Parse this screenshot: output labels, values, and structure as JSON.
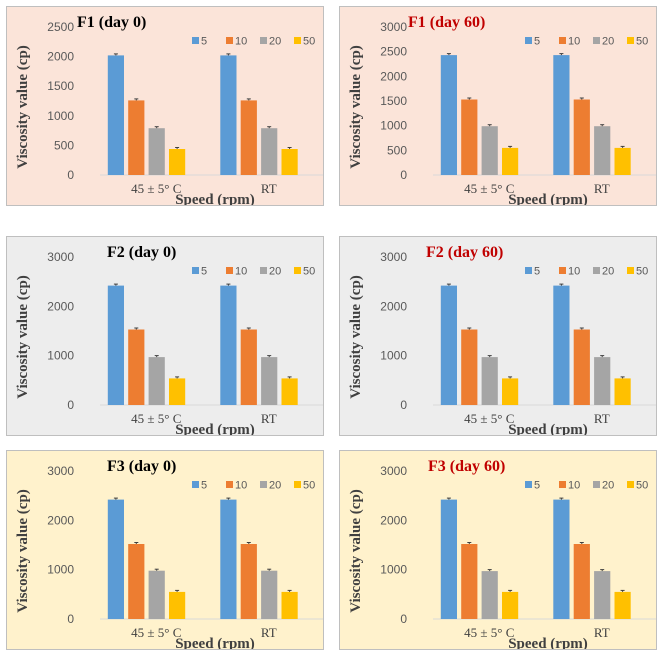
{
  "chart_data": [
    {
      "type": "bar",
      "title": "F1 (day 0)",
      "title_color": "#000000",
      "background": "#fbe4d9",
      "categories": [
        "45 ± 5° C",
        "RT"
      ],
      "series": [
        {
          "name": "5",
          "values": [
            2020,
            2020
          ]
        },
        {
          "name": "10",
          "values": [
            1260,
            1260
          ]
        },
        {
          "name": "20",
          "values": [
            790,
            790
          ]
        },
        {
          "name": "50",
          "values": [
            440,
            440
          ]
        }
      ],
      "series_colors": [
        "#5b9bd5",
        "#ed7d31",
        "#a5a5a5",
        "#ffc000"
      ],
      "xlabel": "Speed (rpm)",
      "ylabel": "Viscosity value (cp)",
      "ylim": [
        0,
        2500
      ],
      "yticks": [
        0,
        500,
        1000,
        1500,
        2000,
        2500
      ],
      "legend_position": "top-right",
      "grid": false
    },
    {
      "type": "bar",
      "title": "F1 (day 60)",
      "title_color": "#c00000",
      "background": "#fbe4d9",
      "categories": [
        "45 ± 5° C",
        "RT"
      ],
      "series": [
        {
          "name": "5",
          "values": [
            2430,
            2430
          ]
        },
        {
          "name": "10",
          "values": [
            1530,
            1530
          ]
        },
        {
          "name": "20",
          "values": [
            990,
            990
          ]
        },
        {
          "name": "50",
          "values": [
            550,
            550
          ]
        }
      ],
      "series_colors": [
        "#5b9bd5",
        "#ed7d31",
        "#a5a5a5",
        "#ffc000"
      ],
      "xlabel": "Speed (rpm)",
      "ylabel": "Viscosity value (cp)",
      "ylim": [
        0,
        3000
      ],
      "yticks": [
        0,
        500,
        1000,
        1500,
        2000,
        2500,
        3000
      ],
      "legend_position": "top-right",
      "grid": false
    },
    {
      "type": "bar",
      "title": "F2 (day 0)",
      "title_color": "#000000",
      "background": "#ededed",
      "categories": [
        "45 ± 5° C",
        "RT"
      ],
      "series": [
        {
          "name": "5",
          "values": [
            2420,
            2420
          ]
        },
        {
          "name": "10",
          "values": [
            1530,
            1530
          ]
        },
        {
          "name": "20",
          "values": [
            970,
            970
          ]
        },
        {
          "name": "50",
          "values": [
            540,
            540
          ]
        }
      ],
      "series_colors": [
        "#5b9bd5",
        "#ed7d31",
        "#a5a5a5",
        "#ffc000"
      ],
      "xlabel": "Speed (rpm)",
      "ylabel": "Viscosity value (cp)",
      "ylim": [
        0,
        3000
      ],
      "yticks": [
        0,
        1000,
        2000,
        3000
      ],
      "legend_position": "top-right",
      "grid": false
    },
    {
      "type": "bar",
      "title": "F2 (day 60)",
      "title_color": "#c00000",
      "background": "#ededed",
      "categories": [
        "45 ± 5° C",
        "RT"
      ],
      "series": [
        {
          "name": "5",
          "values": [
            2420,
            2420
          ]
        },
        {
          "name": "10",
          "values": [
            1530,
            1530
          ]
        },
        {
          "name": "20",
          "values": [
            970,
            970
          ]
        },
        {
          "name": "50",
          "values": [
            540,
            540
          ]
        }
      ],
      "series_colors": [
        "#5b9bd5",
        "#ed7d31",
        "#a5a5a5",
        "#ffc000"
      ],
      "xlabel": "Speed (rpm)",
      "ylabel": "Viscosity value (cp)",
      "ylim": [
        0,
        3000
      ],
      "yticks": [
        0,
        1000,
        2000,
        3000
      ],
      "legend_position": "top-right",
      "grid": false
    },
    {
      "type": "bar",
      "title": "F3 (day 0)",
      "title_color": "#000000",
      "background": "#fff2cc",
      "categories": [
        "45 ± 5° C",
        "RT"
      ],
      "series": [
        {
          "name": "5",
          "values": [
            2420,
            2420
          ]
        },
        {
          "name": "10",
          "values": [
            1520,
            1520
          ]
        },
        {
          "name": "20",
          "values": [
            980,
            980
          ]
        },
        {
          "name": "50",
          "values": [
            550,
            550
          ]
        }
      ],
      "series_colors": [
        "#5b9bd5",
        "#ed7d31",
        "#a5a5a5",
        "#ffc000"
      ],
      "xlabel": "Speed (rpm)",
      "ylabel": "Viscosity value (cp)",
      "ylim": [
        0,
        3000
      ],
      "yticks": [
        0,
        1000,
        2000,
        3000
      ],
      "legend_position": "top-right",
      "grid": false
    },
    {
      "type": "bar",
      "title": "F3 (day 60)",
      "title_color": "#c00000",
      "background": "#fff2cc",
      "categories": [
        "45 ± 5° C",
        "RT"
      ],
      "series": [
        {
          "name": "5",
          "values": [
            2420,
            2420
          ]
        },
        {
          "name": "10",
          "values": [
            1520,
            1520
          ]
        },
        {
          "name": "20",
          "values": [
            970,
            970
          ]
        },
        {
          "name": "50",
          "values": [
            550,
            550
          ]
        }
      ],
      "series_colors": [
        "#5b9bd5",
        "#ed7d31",
        "#a5a5a5",
        "#ffc000"
      ],
      "xlabel": "Speed (rpm)",
      "ylabel": "Viscosity value (cp)",
      "ylim": [
        0,
        3000
      ],
      "yticks": [
        0,
        1000,
        2000,
        3000
      ],
      "legend_position": "top-right",
      "grid": false
    }
  ]
}
